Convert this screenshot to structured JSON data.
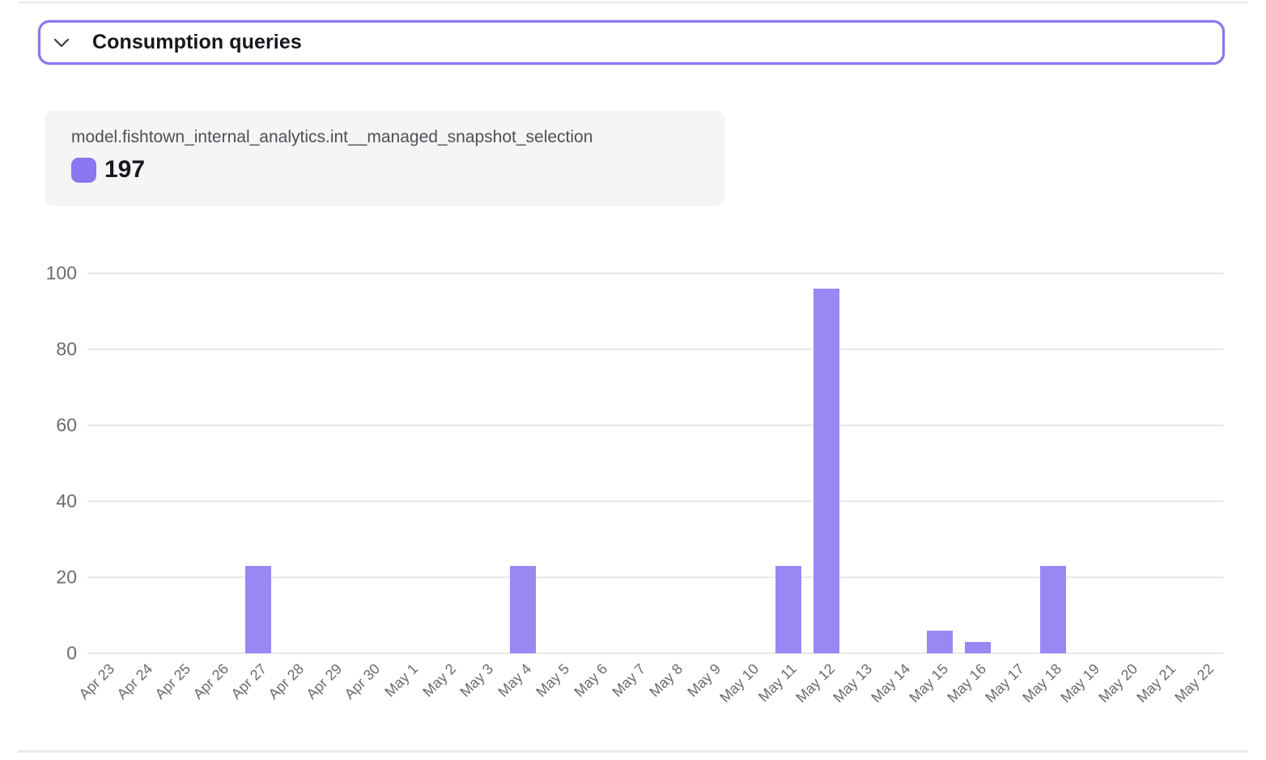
{
  "header": {
    "title": "Consumption queries",
    "chevron_icon": "chevron-down",
    "border_color": "#8b75f0"
  },
  "legend": {
    "model_name": "model.fishtown_internal_analytics.int__managed_snapshot_selection",
    "total_value": "197",
    "swatch_color": "#8b75f0"
  },
  "chart_data": {
    "type": "bar",
    "title": "",
    "xlabel": "",
    "ylabel": "",
    "categories": [
      "Apr 23",
      "Apr 24",
      "Apr 25",
      "Apr 26",
      "Apr 27",
      "Apr 28",
      "Apr 29",
      "Apr 30",
      "May 1",
      "May 2",
      "May 3",
      "May 4",
      "May 5",
      "May 6",
      "May 7",
      "May 8",
      "May 9",
      "May 10",
      "May 11",
      "May 12",
      "May 13",
      "May 14",
      "May 15",
      "May 16",
      "May 17",
      "May 18",
      "May 19",
      "May 20",
      "May 21",
      "May 22"
    ],
    "series": [
      {
        "name": "model.fishtown_internal_analytics.int__managed_snapshot_selection",
        "values": [
          0,
          0,
          0,
          0,
          23,
          0,
          0,
          0,
          0,
          0,
          0,
          23,
          0,
          0,
          0,
          0,
          0,
          0,
          23,
          96,
          0,
          0,
          6,
          3,
          0,
          23,
          0,
          0,
          0,
          0
        ]
      }
    ],
    "total": 197,
    "yticks": [
      0,
      20,
      40,
      60,
      80,
      100
    ],
    "ylim": [
      0,
      100
    ],
    "grid": true,
    "legend_position": "top-left",
    "bar_color": "#9b87f3"
  },
  "colors": {
    "accent": "#8b75f0",
    "bar": "#9b87f3",
    "grid": "#e9e9ea",
    "axis_text": "#6a6a6f",
    "title_text": "#17171c",
    "legend_bg": "#f5f5f6",
    "legend_text": "#4f4f56",
    "divider": "#e9e9ea"
  }
}
